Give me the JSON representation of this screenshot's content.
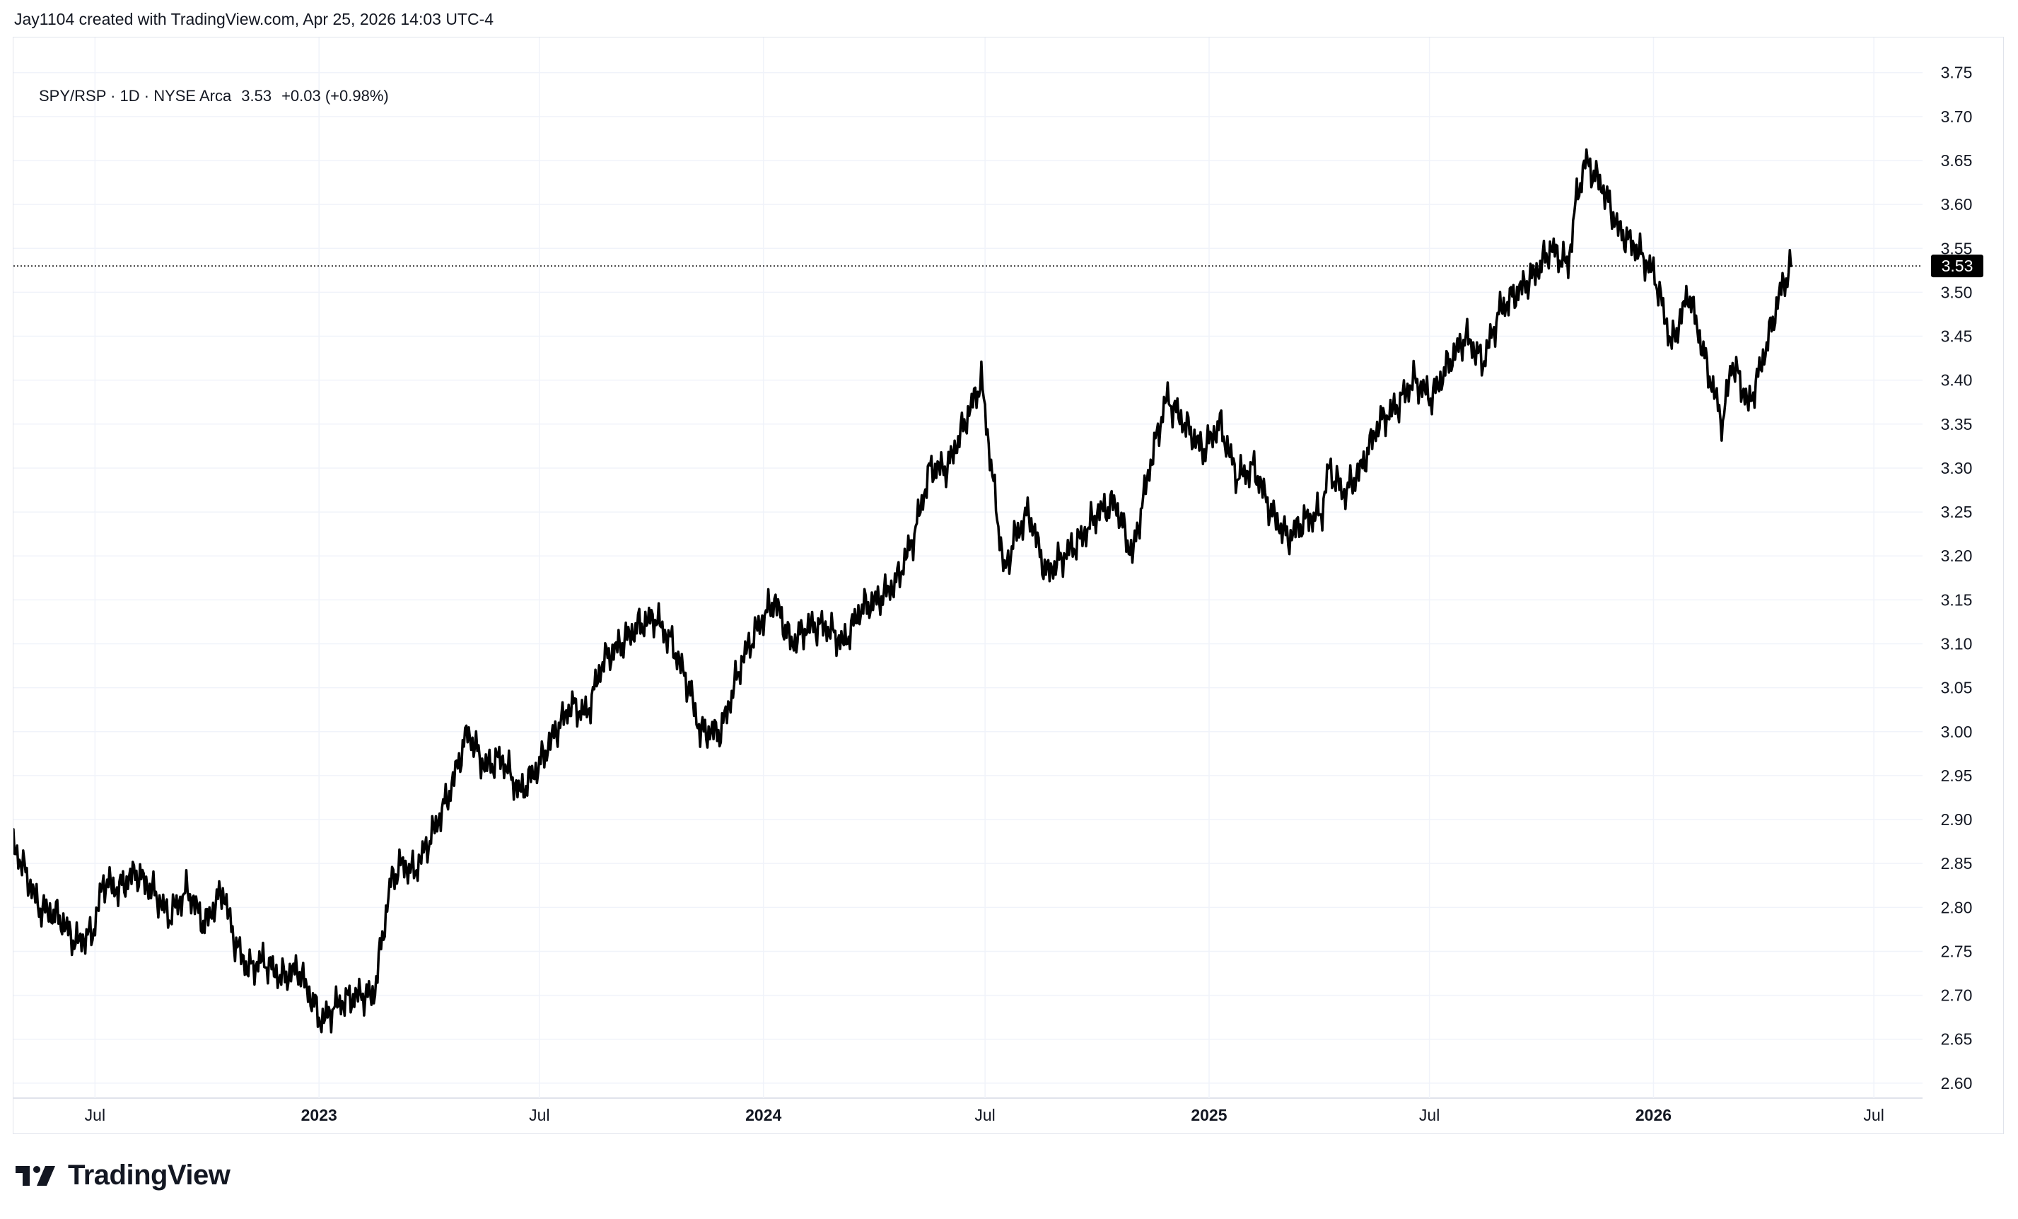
{
  "attribution": "Jay1104 created with TradingView.com, Apr 25, 2026 14:03 UTC-4",
  "legend": {
    "symbol": "SPY/RSP · 1D · NYSE Arca",
    "last": "3.53",
    "change": "+0.03 (+0.98%)"
  },
  "logo": {
    "name": "TradingView",
    "icon": "tradingview-logo-icon"
  },
  "colors": {
    "line": "#000000",
    "grid": "#f0f3fa",
    "price_badge": "#000000",
    "text": "#131722"
  },
  "chart_data": {
    "type": "line",
    "series": [
      {
        "x": [
          "2022-04-25",
          "2022-05-02",
          "2022-05-16",
          "2022-06-01",
          "2022-06-15",
          "2022-06-29",
          "2022-07-08",
          "2022-07-20",
          "2022-08-03",
          "2022-08-17",
          "2022-08-31",
          "2022-09-15",
          "2022-09-29",
          "2022-10-14",
          "2022-10-24",
          "2022-11-04",
          "2022-11-16",
          "2022-12-01",
          "2022-12-15",
          "2023-01-03",
          "2023-01-16",
          "2023-02-01",
          "2023-02-15",
          "2023-03-01",
          "2023-03-10",
          "2023-03-20",
          "2023-04-03",
          "2023-04-18",
          "2023-05-03",
          "2023-05-17",
          "2023-05-31",
          "2023-06-15",
          "2023-06-30",
          "2023-07-14",
          "2023-07-27",
          "2023-08-09",
          "2023-08-22",
          "2023-09-06",
          "2023-09-20",
          "2023-10-04",
          "2023-10-18",
          "2023-11-01",
          "2023-11-10",
          "2023-11-27",
          "2023-12-14",
          "2023-12-28",
          "2024-01-10",
          "2024-01-24",
          "2024-02-07",
          "2024-02-21",
          "2024-03-07",
          "2024-03-21",
          "2024-04-04",
          "2024-04-19",
          "2024-05-03",
          "2024-05-17",
          "2024-05-31",
          "2024-06-14",
          "2024-06-28",
          "2024-07-08",
          "2024-07-17",
          "2024-07-25",
          "2024-08-06",
          "2024-08-20",
          "2024-09-04",
          "2024-09-18",
          "2024-10-02",
          "2024-10-16",
          "2024-10-30",
          "2024-11-13",
          "2024-11-27",
          "2024-12-12",
          "2024-12-27",
          "2025-01-10",
          "2025-01-24",
          "2025-02-07",
          "2025-02-21",
          "2025-03-07",
          "2025-03-20",
          "2025-04-04",
          "2025-04-09",
          "2025-04-22",
          "2025-05-06",
          "2025-05-20",
          "2025-06-04",
          "2025-06-18",
          "2025-07-03",
          "2025-07-17",
          "2025-07-31",
          "2025-08-14",
          "2025-08-28",
          "2025-09-11",
          "2025-09-25",
          "2025-10-09",
          "2025-10-23",
          "2025-10-29",
          "2025-11-06",
          "2025-11-20",
          "2025-12-04",
          "2025-12-18",
          "2026-01-02",
          "2026-01-16",
          "2026-01-30",
          "2026-02-13",
          "2026-02-27",
          "2026-03-06",
          "2026-03-13",
          "2026-03-20",
          "2026-03-27",
          "2026-04-06",
          "2026-04-15",
          "2026-04-24"
        ],
        "y": [
          2.87,
          2.85,
          2.8,
          2.79,
          2.76,
          2.77,
          2.83,
          2.82,
          2.84,
          2.82,
          2.79,
          2.82,
          2.78,
          2.82,
          2.76,
          2.73,
          2.74,
          2.72,
          2.73,
          2.67,
          2.69,
          2.7,
          2.7,
          2.83,
          2.85,
          2.84,
          2.88,
          2.93,
          3.0,
          2.96,
          2.97,
          2.93,
          2.96,
          3.0,
          3.03,
          3.02,
          3.08,
          3.1,
          3.12,
          3.13,
          3.1,
          3.05,
          3.0,
          3.0,
          3.08,
          3.12,
          3.15,
          3.1,
          3.12,
          3.12,
          3.1,
          3.14,
          3.15,
          3.17,
          3.22,
          3.3,
          3.3,
          3.35,
          3.4,
          3.28,
          3.18,
          3.22,
          3.25,
          3.18,
          3.2,
          3.22,
          3.25,
          3.26,
          3.2,
          3.3,
          3.38,
          3.35,
          3.32,
          3.35,
          3.29,
          3.3,
          3.25,
          3.22,
          3.24,
          3.25,
          3.3,
          3.27,
          3.3,
          3.35,
          3.37,
          3.4,
          3.38,
          3.42,
          3.45,
          3.42,
          3.48,
          3.5,
          3.52,
          3.55,
          3.53,
          3.6,
          3.65,
          3.62,
          3.57,
          3.55,
          3.52,
          3.44,
          3.5,
          3.42,
          3.35,
          3.42,
          3.4,
          3.37,
          3.4,
          3.45,
          3.5,
          3.53
        ]
      }
    ],
    "x_ticks": [
      "Jul",
      "2023",
      "Jul",
      "2024",
      "Jul",
      "2025",
      "Jul",
      "2026",
      "Jul"
    ],
    "y_ticks": [
      "3.75",
      "3.70",
      "3.65",
      "3.60",
      "3.55",
      "3.50",
      "3.45",
      "3.40",
      "3.35",
      "3.30",
      "3.25",
      "3.20",
      "3.15",
      "3.10",
      "3.05",
      "3.00",
      "2.95",
      "2.90",
      "2.85",
      "2.80",
      "2.75",
      "2.70",
      "2.65",
      "2.60"
    ],
    "ylim": [
      2.583,
      3.79
    ],
    "xlim": [
      "2022-04-25",
      "2026-08-10"
    ],
    "last_value_label": "3.53",
    "grid": true,
    "axis_position": "right"
  }
}
